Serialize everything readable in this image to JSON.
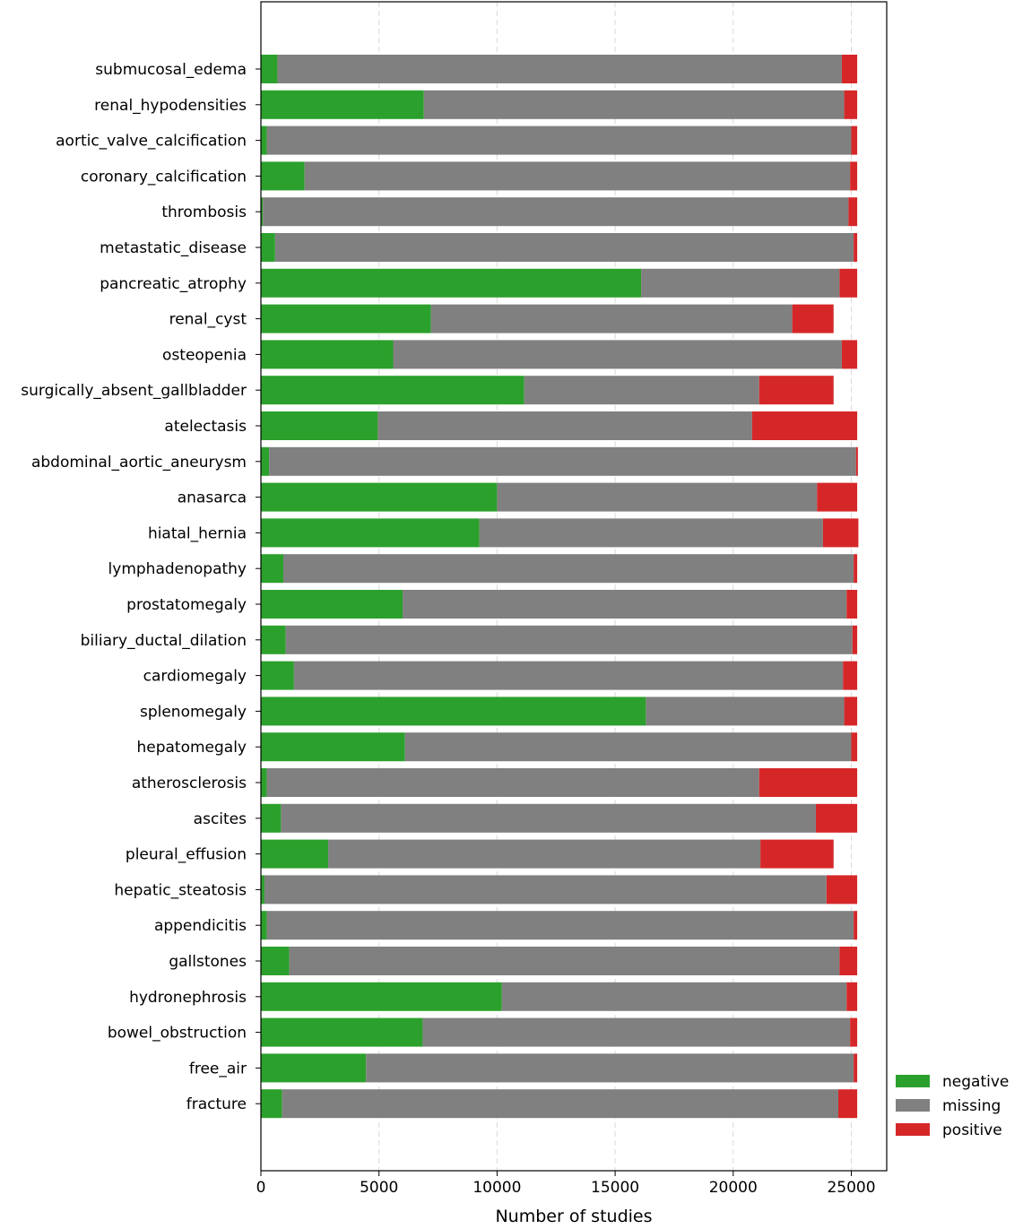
{
  "chart_data": {
    "type": "bar",
    "orientation": "horizontal",
    "stacked": true,
    "title": "",
    "xlabel": "Number of studies",
    "ylabel": "",
    "xlim": [
      0,
      26500
    ],
    "xticks": [
      0,
      5000,
      10000,
      15000,
      20000,
      25000
    ],
    "grid": "x-dashed",
    "legend_position": "bottom-right-outside",
    "categories": [
      "submucosal_edema",
      "renal_hypodensities",
      "aortic_valve_calcification",
      "coronary_calcification",
      "thrombosis",
      "metastatic_disease",
      "pancreatic_atrophy",
      "renal_cyst",
      "osteopenia",
      "surgically_absent_gallbladder",
      "atelectasis",
      "abdominal_aortic_aneurysm",
      "anasarca",
      "hiatal_hernia",
      "lymphadenopathy",
      "prostatomegaly",
      "biliary_ductal_dilation",
      "cardiomegaly",
      "splenomegaly",
      "hepatomegaly",
      "atherosclerosis",
      "ascites",
      "pleural_effusion",
      "hepatic_steatosis",
      "appendicitis",
      "gallstones",
      "hydronephrosis",
      "bowel_obstruction",
      "free_air",
      "fracture"
    ],
    "series": [
      {
        "name": "negative",
        "color": "#2ca02c",
        "values": [
          700,
          6900,
          250,
          1850,
          80,
          600,
          16100,
          7200,
          5600,
          11150,
          4950,
          350,
          10000,
          9250,
          950,
          6000,
          1050,
          1400,
          16300,
          6100,
          250,
          850,
          2850,
          150,
          250,
          1200,
          10200,
          6850,
          4450,
          900
        ]
      },
      {
        "name": "missing",
        "color": "#808080",
        "values": [
          23900,
          17800,
          24750,
          23100,
          24800,
          24500,
          8400,
          15300,
          19000,
          9950,
          15850,
          24850,
          13550,
          14550,
          24150,
          18800,
          24000,
          23250,
          8400,
          18900,
          20850,
          22650,
          18300,
          23800,
          24850,
          23300,
          14600,
          18100,
          20650,
          23550
        ]
      },
      {
        "name": "positive",
        "color": "#d62728",
        "values": [
          650,
          550,
          250,
          300,
          370,
          150,
          750,
          1750,
          650,
          3150,
          4450,
          80,
          1700,
          1500,
          150,
          450,
          200,
          600,
          550,
          250,
          4150,
          1750,
          3100,
          1300,
          150,
          750,
          450,
          300,
          150,
          800
        ]
      }
    ]
  }
}
